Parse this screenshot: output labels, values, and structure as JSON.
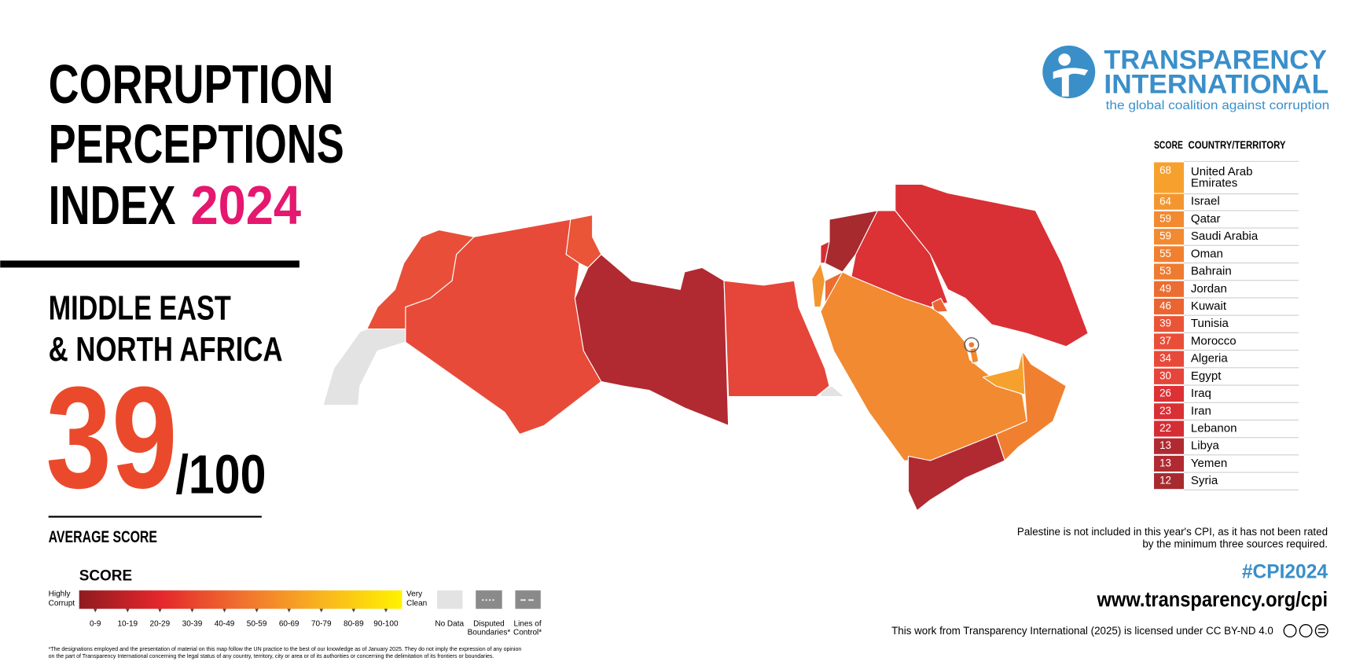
{
  "header": {
    "title_lines": [
      "CORRUPTION",
      "PERCEPTIONS",
      "INDEX"
    ],
    "year": "2024",
    "region_lines": [
      "MIDDLE EAST",
      "& NORTH AFRICA"
    ],
    "average": "39",
    "out_of": "/100",
    "average_label": "AVERAGE SCORE"
  },
  "legend": {
    "title": "SCORE",
    "low_label": [
      "Highly",
      "Corrupt"
    ],
    "high_label": [
      "Very",
      "Clean"
    ],
    "ranges": [
      "0-9",
      "10-19",
      "20-29",
      "30-39",
      "40-49",
      "50-59",
      "60-69",
      "70-79",
      "80-89",
      "90-100"
    ],
    "no_data": "No Data",
    "disputed": [
      "Disputed",
      "Boundaries*"
    ],
    "lines_of_control": [
      "Lines of",
      "Control*"
    ]
  },
  "footnote": [
    "*The designations employed and the presentation of material on this map follow the UN practice to the best of our knowledge as of January 2025. They do not imply the expression of any opinion",
    "on the part of Transparency International concerning the legal status of any country, territory, city or area or of its authorities or concerning the delimitation of its frontiers or boundaries."
  ],
  "logo": {
    "line1": "TRANSPARENCY",
    "line2": "INTERNATIONAL",
    "tagline": "the global coalition against corruption"
  },
  "table": {
    "headers": [
      "SCORE",
      "COUNTRY/TERRITORY"
    ],
    "rows": [
      {
        "score": 68,
        "country": "United Arab Emirates",
        "color": "#f6a12e"
      },
      {
        "score": 64,
        "country": "Israel",
        "color": "#f4962f"
      },
      {
        "score": 59,
        "country": "Qatar",
        "color": "#f28a31"
      },
      {
        "score": 59,
        "country": "Saudi Arabia",
        "color": "#f28a31"
      },
      {
        "score": 55,
        "country": "Oman",
        "color": "#f08030"
      },
      {
        "score": 53,
        "country": "Bahrain",
        "color": "#ee7b30"
      },
      {
        "score": 49,
        "country": "Jordan",
        "color": "#ec6d31"
      },
      {
        "score": 46,
        "country": "Kuwait",
        "color": "#ea6532"
      },
      {
        "score": 39,
        "country": "Tunisia",
        "color": "#ea5537"
      },
      {
        "score": 37,
        "country": "Morocco",
        "color": "#e94f38"
      },
      {
        "score": 34,
        "country": "Algeria",
        "color": "#e84a39"
      },
      {
        "score": 30,
        "country": "Egypt",
        "color": "#e6453a"
      },
      {
        "score": 26,
        "country": "Iraq",
        "color": "#dc3135"
      },
      {
        "score": 23,
        "country": "Iran",
        "color": "#d93035"
      },
      {
        "score": 22,
        "country": "Lebanon",
        "color": "#d42e34"
      },
      {
        "score": 13,
        "country": "Libya",
        "color": "#b12a31"
      },
      {
        "score": 13,
        "country": "Yemen",
        "color": "#b12a31"
      },
      {
        "score": 12,
        "country": "Syria",
        "color": "#a72a2f"
      }
    ]
  },
  "notes": {
    "palestine": [
      "Palestine is not included in this year's CPI, as it has not been rated",
      "by the minimum three sources required."
    ],
    "hashtag": "#CPI2024",
    "url": "www.transparency.org/cpi",
    "license": "This work from Transparency International (2025) is licensed under CC BY-ND 4.0"
  }
}
